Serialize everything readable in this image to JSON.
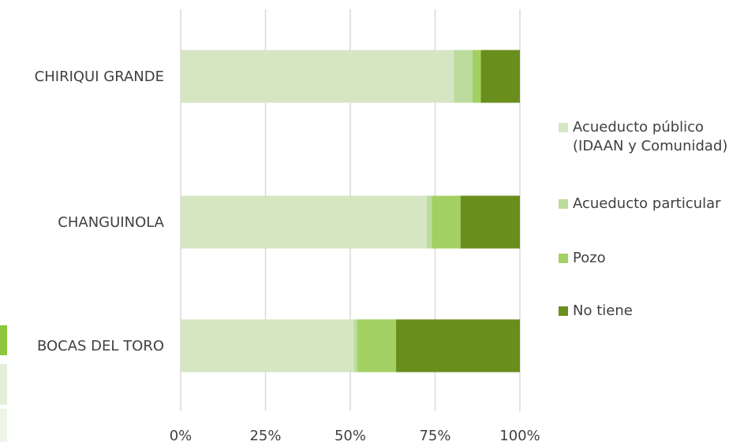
{
  "chart_data": {
    "type": "bar",
    "orientation": "horizontal",
    "stacked": "percent",
    "categories": [
      "CHIRIQUI GRANDE",
      "CHANGUINOLA",
      "BOCAS DEL TORO"
    ],
    "series": [
      {
        "name": "Acueducto público\n(IDAAN y Comunidad)",
        "color": "#d6e6c3",
        "values": [
          80.5,
          72.5,
          51
        ]
      },
      {
        "name": "Acueducto particular",
        "color": "#bcdc9e",
        "values": [
          5.5,
          1.5,
          1
        ]
      },
      {
        "name": "Pozo",
        "color": "#a3d063",
        "values": [
          2.5,
          8.5,
          11.5
        ]
      },
      {
        "name": "No tiene",
        "color": "#6a8e1c",
        "values": [
          11.5,
          17.5,
          36.5
        ]
      }
    ],
    "xlim": [
      0,
      100
    ],
    "xticks": [
      0,
      25,
      50,
      75,
      100
    ],
    "xtick_labels": [
      "0%",
      "25%",
      "50%",
      "75%",
      "100%"
    ],
    "grid": true,
    "legend_position": "right"
  }
}
